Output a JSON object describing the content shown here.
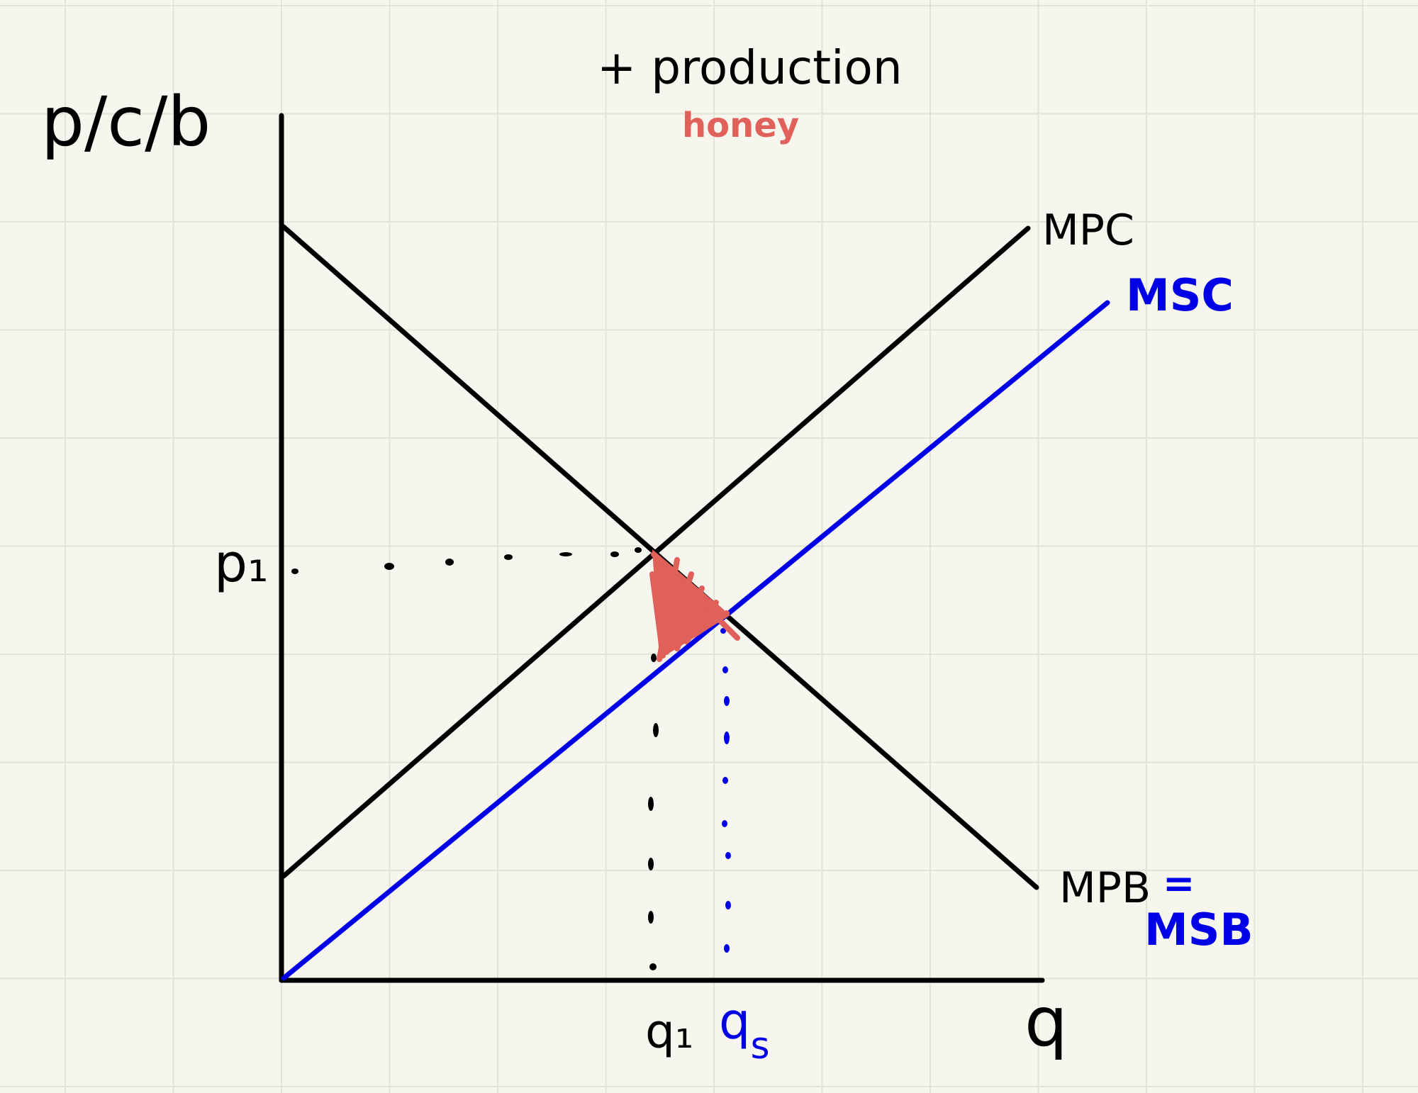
{
  "title": "+ production",
  "subtitle": "honey",
  "y_axis_label": "p/c/b",
  "x_axis_label": "q",
  "curves": {
    "mpc": "MPC",
    "msc": "MSC",
    "mpb": "MPB",
    "mpb_eq": "=",
    "msb": "MSB"
  },
  "markers": {
    "p1": "p₁",
    "q1": "q₁",
    "qs_main": "q",
    "qs_sub": "s"
  },
  "colors": {
    "background": "#f7f6ee",
    "grid": "#e3e3d8",
    "ink": "#000000",
    "social": "#0000e6",
    "highlight": "#e0605a"
  },
  "diagram": {
    "type": "externality",
    "lines": [
      {
        "name": "MPC",
        "role": "supply",
        "color": "black"
      },
      {
        "name": "MSC",
        "role": "social-cost",
        "color": "blue"
      },
      {
        "name": "MPB = MSB",
        "role": "demand",
        "color": "black"
      }
    ],
    "shaded_area": "deadweight-welfare-loss",
    "shaded_color": "red"
  }
}
